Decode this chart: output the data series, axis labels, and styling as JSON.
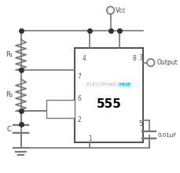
{
  "bg_color": "#ffffff",
  "ic_label": "555",
  "ic_label_color": "#000000",
  "ic_label_size": 11,
  "watermark": "ELECTRONICS ",
  "watermark2": "HUB",
  "watermark_color": "#aaaaaa",
  "watermark2_color": "#00ccff",
  "line_color": "#777777",
  "line_width": 1.2,
  "dot_color": "#333333",
  "R1_label": "R₁",
  "R2_label": "R₂",
  "C_label": "C",
  "cap_label": "0.01μF",
  "vcc_label": "Vcc",
  "output_label": "Output"
}
